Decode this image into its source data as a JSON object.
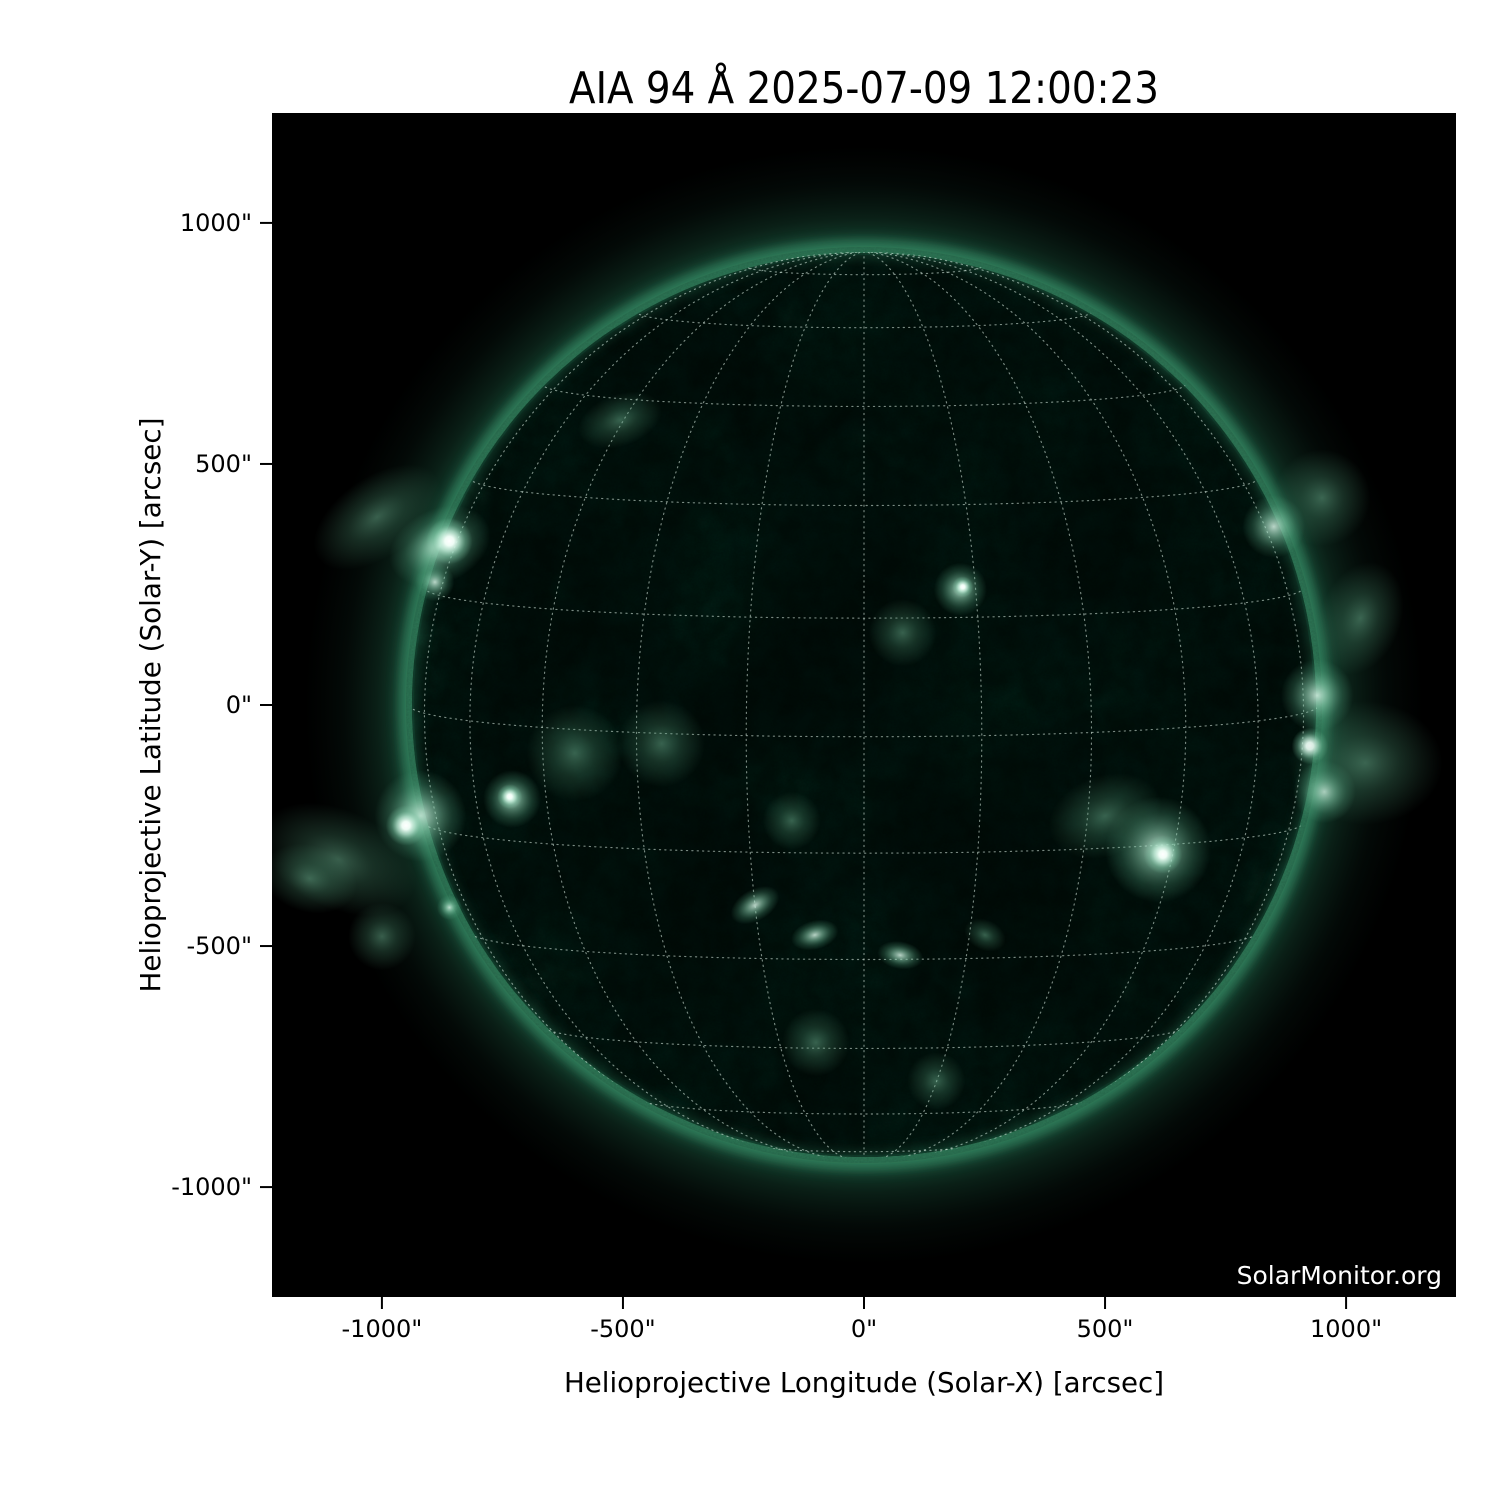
{
  "figure": {
    "title": "AIA 94 Å 2025-07-09 12:00:23",
    "watermark": "SolarMonitor.org"
  },
  "axes": {
    "x": {
      "label": "Helioprojective Longitude (Solar-X) [arcsec]",
      "ticks": [
        "-1000\"",
        "-500\"",
        "0\"",
        "500\"",
        "1000\""
      ]
    },
    "y": {
      "label": "Helioprojective Latitude (Solar-Y) [arcsec]",
      "ticks": [
        "1000\"",
        "500\"",
        "0\"",
        "-500\"",
        "-1000\""
      ]
    }
  },
  "colors": {
    "page_background": "#ffffff",
    "plot_background": "#000000",
    "axis_text": "#000000",
    "watermark_text": "#ffffff",
    "sun_dark": "#0b2c20",
    "sun_mid": "#2e8a62",
    "sun_limb": "#3fa278",
    "sun_bright": "#bfeed8",
    "sun_core": "#ffffff",
    "grid_dots": "#dff3e8"
  },
  "chart_data": {
    "type": "heatmap",
    "title": "AIA 94 Å 2025-07-09 12:00:23",
    "instrument": "AIA 94 Å",
    "observation_time": "2025-07-09 12:00:23",
    "xlabel": "Helioprojective Longitude (Solar-X) [arcsec]",
    "ylabel": "Helioprojective Latitude (Solar-Y) [arcsec]",
    "xlim": [
      -1228,
      1228
    ],
    "ylim": [
      -1228,
      1228
    ],
    "x_tick_values": [
      -1000,
      -500,
      0,
      500,
      1000
    ],
    "y_tick_values": [
      1000,
      500,
      0,
      -500,
      -1000
    ],
    "grid": "heliographic dotted",
    "grid_spacing_deg": 15,
    "b0_deg": 4,
    "sun_radius_arcsec": 944,
    "features": [
      {
        "x": -1010,
        "y": 390,
        "r": 150,
        "tone": "faint",
        "ar": 0.55,
        "rot": -35
      },
      {
        "x": -880,
        "y": 330,
        "r": 110,
        "tone": "bright",
        "ar": 0.7,
        "rot": -25
      },
      {
        "x": -860,
        "y": 340,
        "r": 48,
        "tone": "white"
      },
      {
        "x": -890,
        "y": 255,
        "r": 40,
        "tone": "bright"
      },
      {
        "x": -1090,
        "y": -320,
        "r": 170,
        "tone": "faint",
        "ar": 0.6,
        "rot": 25
      },
      {
        "x": -1150,
        "y": -360,
        "r": 100,
        "tone": "faint",
        "ar": 0.7,
        "rot": 15
      },
      {
        "x": -920,
        "y": -230,
        "r": 95,
        "tone": "bright"
      },
      {
        "x": -950,
        "y": -250,
        "r": 42,
        "tone": "white"
      },
      {
        "x": -730,
        "y": -195,
        "r": 60,
        "tone": "bright"
      },
      {
        "x": -735,
        "y": -190,
        "r": 26,
        "tone": "white"
      },
      {
        "x": -860,
        "y": -420,
        "r": 26,
        "tone": "bright"
      },
      {
        "x": -1000,
        "y": -480,
        "r": 70,
        "tone": "faint"
      },
      {
        "x": -506,
        "y": 591,
        "r": 90,
        "tone": "faint",
        "ar": 0.6,
        "rot": -20
      },
      {
        "x": -600,
        "y": -100,
        "r": 100,
        "tone": "faint"
      },
      {
        "x": -420,
        "y": -80,
        "r": 90,
        "tone": "faint"
      },
      {
        "x": -226,
        "y": -415,
        "r": 55,
        "tone": "bright",
        "ar": 0.6,
        "rot": -30
      },
      {
        "x": -102,
        "y": -477,
        "r": 50,
        "tone": "bright",
        "ar": 0.6,
        "rot": -15
      },
      {
        "x": 75,
        "y": -519,
        "r": 48,
        "tone": "bright",
        "ar": 0.6,
        "rot": 10
      },
      {
        "x": 251,
        "y": -477,
        "r": 45,
        "tone": "faint",
        "ar": 0.7,
        "rot": 25
      },
      {
        "x": -150,
        "y": -240,
        "r": 60,
        "tone": "faint"
      },
      {
        "x": 200,
        "y": 240,
        "r": 55,
        "tone": "bright"
      },
      {
        "x": 205,
        "y": 245,
        "r": 22,
        "tone": "white"
      },
      {
        "x": 80,
        "y": 150,
        "r": 70,
        "tone": "faint"
      },
      {
        "x": 610,
        "y": -300,
        "r": 110,
        "tone": "bright"
      },
      {
        "x": 620,
        "y": -310,
        "r": 40,
        "tone": "white"
      },
      {
        "x": 500,
        "y": -230,
        "r": 120,
        "tone": "faint",
        "ar": 0.7,
        "rot": -20
      },
      {
        "x": 925,
        "y": -85,
        "r": 38,
        "tone": "white"
      },
      {
        "x": 940,
        "y": 20,
        "r": 75,
        "tone": "bright"
      },
      {
        "x": 955,
        "y": -180,
        "r": 65,
        "tone": "bright"
      },
      {
        "x": 1040,
        "y": -120,
        "r": 160,
        "tone": "faint",
        "ar": 0.8
      },
      {
        "x": 1030,
        "y": 180,
        "r": 120,
        "tone": "faint",
        "ar": 0.7,
        "rot": -70
      },
      {
        "x": 850,
        "y": 370,
        "r": 65,
        "tone": "bright"
      },
      {
        "x": 950,
        "y": 430,
        "r": 100,
        "tone": "faint"
      },
      {
        "x": -100,
        "y": -700,
        "r": 70,
        "tone": "faint"
      },
      {
        "x": 150,
        "y": -780,
        "r": 60,
        "tone": "faint"
      }
    ],
    "legend": "none",
    "annotations": [
      "SolarMonitor.org"
    ]
  }
}
